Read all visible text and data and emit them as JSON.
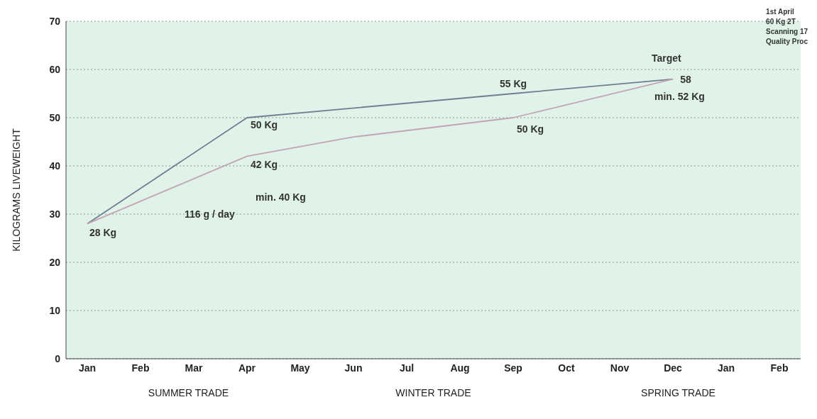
{
  "chart_data": {
    "type": "line",
    "ylabel": "KILOGRAMS LIVEWEIGHT",
    "categories": [
      "Jan",
      "Feb",
      "Mar",
      "Apr",
      "May",
      "Jun",
      "Jul",
      "Aug",
      "Sep",
      "Oct",
      "Nov",
      "Dec",
      "Jan",
      "Feb"
    ],
    "series": [
      {
        "color": "#6f7f92",
        "values": [
          28,
          null,
          null,
          50,
          null,
          null,
          null,
          null,
          55,
          null,
          null,
          58,
          null,
          null
        ]
      },
      {
        "color": "#c4a3b6",
        "values": [
          28,
          null,
          null,
          42,
          null,
          46,
          null,
          null,
          50,
          null,
          null,
          58,
          null,
          null
        ]
      }
    ],
    "ylim": [
      0,
      70
    ],
    "yticks": [
      0,
      10,
      20,
      30,
      40,
      50,
      60,
      70
    ],
    "grid": "y",
    "marker": "none",
    "line_style": "solid",
    "annotations": [
      "1st April\n60 Kg 2T\nScanning 17\nQuality Proc",
      "SUMMER TRADE",
      "WINTER TRADE",
      "SPRING TRADE",
      "116 g / day",
      "min. 40 Kg",
      "Target",
      "min. 52 Kg",
      {
        "text": "28 Kg",
        "x": "Jan",
        "y": 28
      },
      {
        "text": "50 Kg",
        "x": "Apr",
        "y": 50
      },
      {
        "text": "42 Kg",
        "x": "Apr",
        "y": 42
      },
      {
        "text": "55 Kg",
        "x": "Sep",
        "y": 55
      },
      {
        "text": "50 Kg",
        "x": "Sep",
        "y": 50
      },
      {
        "text": "58",
        "x": "Dec",
        "y": 58
      }
    ]
  }
}
